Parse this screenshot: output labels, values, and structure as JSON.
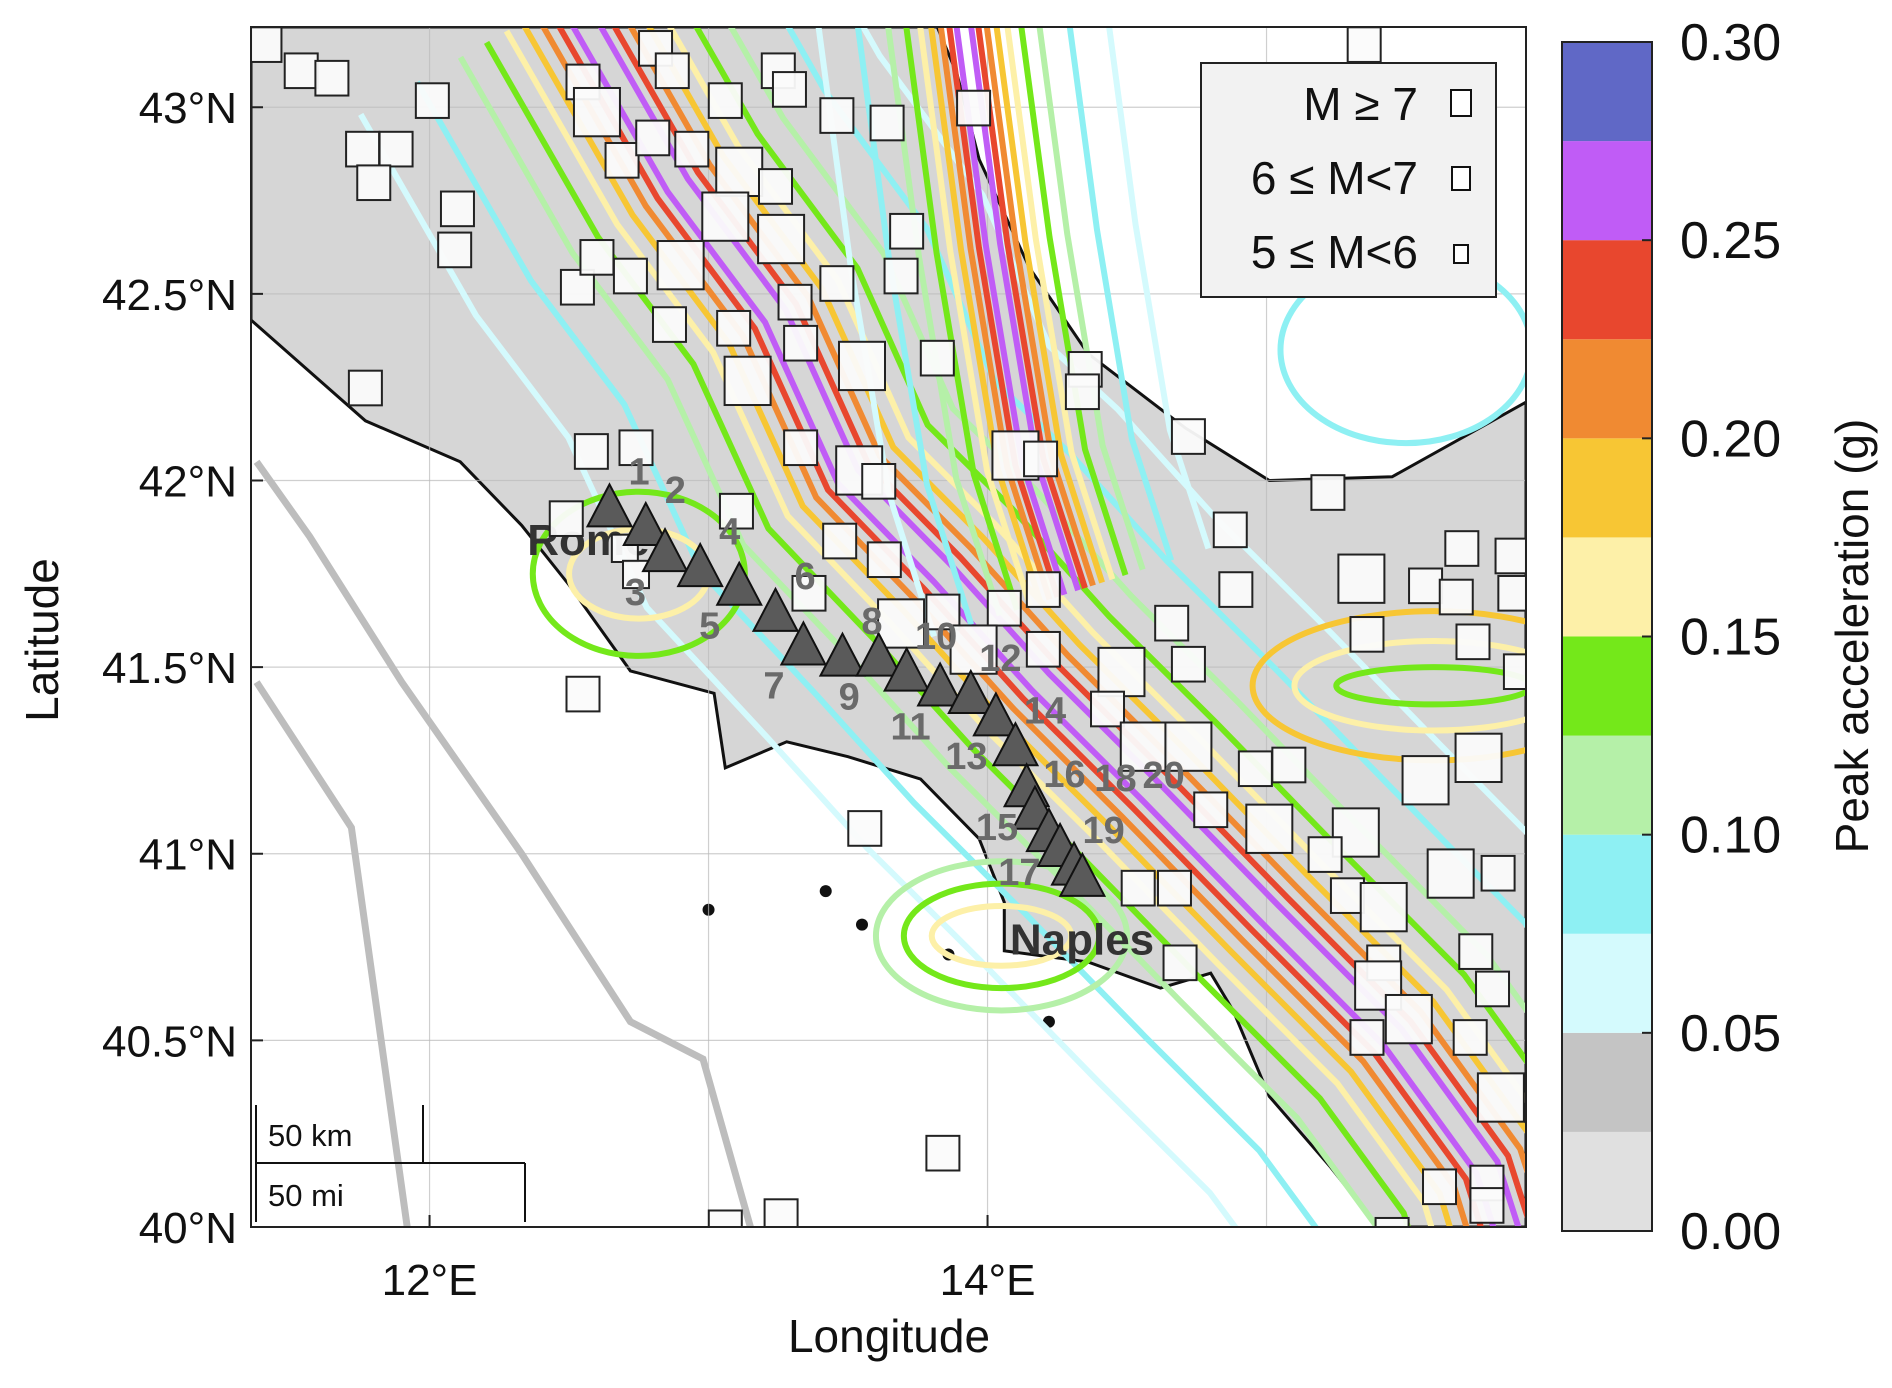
{
  "map": {
    "xlabel": "Longitude",
    "ylabel": "Latitude",
    "lon_range": [
      11.36,
      15.93
    ],
    "lat_range": [
      40.0,
      43.215
    ],
    "grid": true,
    "lon_gridlines": [
      12,
      13,
      14,
      15
    ],
    "lat_gridlines": [
      40,
      40.5,
      41,
      41.5,
      42,
      42.5,
      43
    ],
    "x_ticks": [
      {
        "value": 12,
        "label": "12°E"
      },
      {
        "value": 14,
        "label": "14°E"
      }
    ],
    "y_ticks": [
      {
        "value": 40,
        "label": "40°N"
      },
      {
        "value": 40.5,
        "label": "40.5°N"
      },
      {
        "value": 41,
        "label": "41°N"
      },
      {
        "value": 41.5,
        "label": "41.5°N"
      },
      {
        "value": 42,
        "label": "42°N"
      },
      {
        "value": 42.5,
        "label": "42.5°N"
      },
      {
        "value": 43,
        "label": "43°N"
      }
    ],
    "land_color": "#d6d6d6",
    "land": [
      [
        11.36,
        42.43
      ],
      [
        11.77,
        42.16
      ],
      [
        12.11,
        42.05
      ],
      [
        12.33,
        41.88
      ],
      [
        12.5,
        41.72
      ],
      [
        12.72,
        41.49
      ],
      [
        13.02,
        41.43
      ],
      [
        13.06,
        41.23
      ],
      [
        13.28,
        41.3
      ],
      [
        13.5,
        41.26
      ],
      [
        13.76,
        41.2
      ],
      [
        13.97,
        41.04
      ],
      [
        14.06,
        40.87
      ],
      [
        14.06,
        40.74
      ],
      [
        14.36,
        40.71
      ],
      [
        14.62,
        40.64
      ],
      [
        14.8,
        40.68
      ],
      [
        14.88,
        40.58
      ],
      [
        15.01,
        40.35
      ],
      [
        15.23,
        40.16
      ],
      [
        15.4,
        40.0
      ],
      [
        15.93,
        40.0
      ],
      [
        15.93,
        42.21
      ],
      [
        15.45,
        42.01
      ],
      [
        15.01,
        42.0
      ],
      [
        14.71,
        42.14
      ],
      [
        14.36,
        42.34
      ],
      [
        14.15,
        42.57
      ],
      [
        13.97,
        42.86
      ],
      [
        13.89,
        43.09
      ],
      [
        13.82,
        43.215
      ],
      [
        11.36,
        43.215
      ]
    ],
    "islands": [
      [
        13.0,
        40.85
      ],
      [
        13.42,
        40.9
      ],
      [
        13.55,
        40.81
      ],
      [
        13.86,
        40.73
      ],
      [
        14.22,
        40.55
      ]
    ],
    "offshore_lines": [
      [
        [
          11.38,
          42.05
        ],
        [
          11.57,
          41.85
        ],
        [
          11.9,
          41.46
        ],
        [
          12.33,
          41.0
        ],
        [
          12.72,
          40.55
        ],
        [
          12.98,
          40.45
        ],
        [
          13.15,
          40.0
        ]
      ],
      [
        [
          11.38,
          41.46
        ],
        [
          11.72,
          41.07
        ],
        [
          11.92,
          40.0
        ]
      ]
    ],
    "scale_bar": {
      "km_label": "50 km",
      "mi_label": "50 mi"
    },
    "cities": [
      {
        "name": "Rome",
        "lon": 12.35,
        "lat": 41.8
      },
      {
        "name": "Naples",
        "lon": 14.08,
        "lat": 40.73
      }
    ]
  },
  "contours": {
    "ridges": [
      [
        [
          12.5,
          43.3
        ],
        [
          12.89,
          42.79
        ],
        [
          13.24,
          42.44
        ],
        [
          13.5,
          42.01
        ],
        [
          13.84,
          41.75
        ],
        [
          14.19,
          41.46
        ],
        [
          14.58,
          41.17
        ],
        [
          15.01,
          40.84
        ],
        [
          15.45,
          40.51
        ],
        [
          15.79,
          40.16
        ],
        [
          15.9,
          39.9
        ]
      ],
      [
        [
          13.9,
          43.3
        ],
        [
          14.02,
          42.63
        ],
        [
          14.15,
          42.05
        ],
        [
          14.3,
          41.7
        ]
      ]
    ],
    "levels": [
      {
        "value": 0.25,
        "color": "#c05cf6"
      },
      {
        "value": 0.225,
        "color": "#e8472e"
      },
      {
        "value": 0.2,
        "color": "#f08a32"
      },
      {
        "value": 0.175,
        "color": "#f7c634"
      },
      {
        "value": 0.15,
        "color": "#fdf0a8"
      },
      {
        "value": 0.125,
        "color": "#74e81a"
      },
      {
        "value": 0.1,
        "color": "#b5f0a8"
      },
      {
        "value": 0.075,
        "color": "#8ef0f3"
      },
      {
        "value": 0.05,
        "color": "#d4fafd"
      }
    ],
    "loops": [
      {
        "lon": 14.05,
        "lat": 40.78,
        "rlon": 0.25,
        "rlat": 0.08,
        "level": 0.15
      },
      {
        "lon": 14.05,
        "lat": 40.78,
        "rlon": 0.35,
        "rlat": 0.14,
        "level": 0.125
      },
      {
        "lon": 14.05,
        "lat": 40.78,
        "rlon": 0.45,
        "rlat": 0.2,
        "level": 0.1
      },
      {
        "lon": 15.6,
        "lat": 41.45,
        "rlon": 0.35,
        "rlat": 0.05,
        "level": 0.125
      },
      {
        "lon": 15.6,
        "lat": 41.45,
        "rlon": 0.5,
        "rlat": 0.12,
        "level": 0.15
      },
      {
        "lon": 15.6,
        "lat": 41.45,
        "rlon": 0.65,
        "rlat": 0.2,
        "level": 0.175
      },
      {
        "lon": 12.75,
        "lat": 41.75,
        "rlon": 0.25,
        "rlat": 0.12,
        "level": 0.15
      },
      {
        "lon": 12.75,
        "lat": 41.75,
        "rlon": 0.38,
        "rlat": 0.22,
        "level": 0.125
      },
      {
        "lon": 15.5,
        "lat": 42.35,
        "rlon": 0.45,
        "rlat": 0.25,
        "level": 0.075
      }
    ]
  },
  "stations": [
    {
      "id": "1",
      "lon": 12.645,
      "lat": 41.92
    },
    {
      "id": "2",
      "lon": 12.775,
      "lat": 41.87
    },
    {
      "id": "3",
      "lon": 12.844,
      "lat": 41.8
    },
    {
      "id": "4",
      "lon": 12.97,
      "lat": 41.76
    },
    {
      "id": "5",
      "lon": 13.11,
      "lat": 41.71
    },
    {
      "id": "6",
      "lon": 13.24,
      "lat": 41.64
    },
    {
      "id": "7",
      "lon": 13.34,
      "lat": 41.55
    },
    {
      "id": "8",
      "lon": 13.48,
      "lat": 41.52
    },
    {
      "id": "9",
      "lon": 13.61,
      "lat": 41.52
    },
    {
      "id": "10",
      "lon": 13.71,
      "lat": 41.48
    },
    {
      "id": "11",
      "lon": 13.83,
      "lat": 41.44
    },
    {
      "id": "12",
      "lon": 13.94,
      "lat": 41.42
    },
    {
      "id": "13",
      "lon": 14.03,
      "lat": 41.36
    },
    {
      "id": "14",
      "lon": 14.1,
      "lat": 41.28
    },
    {
      "id": "15",
      "lon": 14.14,
      "lat": 41.17
    },
    {
      "id": "16",
      "lon": 14.17,
      "lat": 41.11
    },
    {
      "id": "17",
      "lon": 14.22,
      "lat": 41.05
    },
    {
      "id": "18",
      "lon": 14.26,
      "lat": 41.01
    },
    {
      "id": "19",
      "lon": 14.31,
      "lat": 40.96
    },
    {
      "id": "20",
      "lon": 14.34,
      "lat": 40.93
    }
  ],
  "earthquakes": [
    {
      "lon": 11.41,
      "lat": 43.17,
      "m": "6-7"
    },
    {
      "lon": 11.54,
      "lat": 43.1,
      "m": "6-7"
    },
    {
      "lon": 11.65,
      "lat": 43.08,
      "m": "6-7"
    },
    {
      "lon": 12.01,
      "lat": 43.02,
      "m": "6-7"
    },
    {
      "lon": 11.76,
      "lat": 42.89,
      "m": "6-7"
    },
    {
      "lon": 11.88,
      "lat": 42.89,
      "m": "6-7"
    },
    {
      "lon": 11.8,
      "lat": 42.8,
      "m": "6-7"
    },
    {
      "lon": 12.1,
      "lat": 42.73,
      "m": "6-7"
    },
    {
      "lon": 12.09,
      "lat": 42.62,
      "m": "6-7"
    },
    {
      "lon": 12.53,
      "lat": 42.52,
      "m": "6-7"
    },
    {
      "lon": 12.6,
      "lat": 42.6,
      "m": "6-7"
    },
    {
      "lon": 12.55,
      "lat": 43.07,
      "m": "6-7"
    },
    {
      "lon": 12.6,
      "lat": 42.99,
      "m": ">=7"
    },
    {
      "lon": 12.81,
      "lat": 43.16,
      "m": "6-7"
    },
    {
      "lon": 12.87,
      "lat": 43.1,
      "m": "6-7"
    },
    {
      "lon": 13.06,
      "lat": 43.02,
      "m": "6-7"
    },
    {
      "lon": 13.25,
      "lat": 43.1,
      "m": "6-7"
    },
    {
      "lon": 13.29,
      "lat": 43.05,
      "m": "6-7"
    },
    {
      "lon": 12.69,
      "lat": 42.86,
      "m": "6-7"
    },
    {
      "lon": 12.8,
      "lat": 42.92,
      "m": "6-7"
    },
    {
      "lon": 12.94,
      "lat": 42.89,
      "m": "6-7"
    },
    {
      "lon": 13.11,
      "lat": 42.83,
      "m": ">=7"
    },
    {
      "lon": 13.24,
      "lat": 42.79,
      "m": "6-7"
    },
    {
      "lon": 13.06,
      "lat": 42.71,
      "m": ">=7"
    },
    {
      "lon": 13.26,
      "lat": 42.65,
      "m": ">=7"
    },
    {
      "lon": 12.9,
      "lat": 42.58,
      "m": ">=7"
    },
    {
      "lon": 12.72,
      "lat": 42.55,
      "m": "6-7"
    },
    {
      "lon": 12.86,
      "lat": 42.42,
      "m": "6-7"
    },
    {
      "lon": 13.09,
      "lat": 42.41,
      "m": "6-7"
    },
    {
      "lon": 13.14,
      "lat": 42.27,
      "m": ">=7"
    },
    {
      "lon": 13.31,
      "lat": 42.48,
      "m": "6-7"
    },
    {
      "lon": 13.33,
      "lat": 42.37,
      "m": "6-7"
    },
    {
      "lon": 13.46,
      "lat": 42.53,
      "m": "6-7"
    },
    {
      "lon": 13.55,
      "lat": 42.31,
      "m": ">=7"
    },
    {
      "lon": 13.71,
      "lat": 42.67,
      "m": "6-7"
    },
    {
      "lon": 13.64,
      "lat": 42.96,
      "m": "6-7"
    },
    {
      "lon": 13.46,
      "lat": 42.98,
      "m": "6-7"
    },
    {
      "lon": 13.69,
      "lat": 42.55,
      "m": "6-7"
    },
    {
      "lon": 13.82,
      "lat": 42.33,
      "m": "6-7"
    },
    {
      "lon": 13.95,
      "lat": 43.0,
      "m": "6-7"
    },
    {
      "lon": 13.33,
      "lat": 42.09,
      "m": "6-7"
    },
    {
      "lon": 13.54,
      "lat": 42.03,
      "m": ">=7"
    },
    {
      "lon": 13.61,
      "lat": 42.0,
      "m": "6-7"
    },
    {
      "lon": 13.1,
      "lat": 41.92,
      "m": "6-7"
    },
    {
      "lon": 12.74,
      "lat": 42.09,
      "m": "6-7"
    },
    {
      "lon": 12.58,
      "lat": 42.08,
      "m": "6-7"
    },
    {
      "lon": 11.77,
      "lat": 42.25,
      "m": "6-7"
    },
    {
      "lon": 12.49,
      "lat": 41.9,
      "m": "6-7"
    },
    {
      "lon": 12.7,
      "lat": 41.82,
      "m": "5-6"
    },
    {
      "lon": 12.74,
      "lat": 41.75,
      "m": "5-6"
    },
    {
      "lon": 13.47,
      "lat": 41.84,
      "m": "6-7"
    },
    {
      "lon": 13.36,
      "lat": 41.7,
      "m": "6-7"
    },
    {
      "lon": 13.63,
      "lat": 41.79,
      "m": "6-7"
    },
    {
      "lon": 13.69,
      "lat": 41.62,
      "m": ">=7"
    },
    {
      "lon": 13.84,
      "lat": 41.65,
      "m": "6-7"
    },
    {
      "lon": 14.06,
      "lat": 41.66,
      "m": "6-7"
    },
    {
      "lon": 14.2,
      "lat": 41.71,
      "m": "6-7"
    },
    {
      "lon": 13.95,
      "lat": 41.55,
      "m": ">=7"
    },
    {
      "lon": 14.2,
      "lat": 41.55,
      "m": "6-7"
    },
    {
      "lon": 14.1,
      "lat": 42.07,
      "m": ">=7"
    },
    {
      "lon": 14.19,
      "lat": 42.06,
      "m": "6-7"
    },
    {
      "lon": 14.35,
      "lat": 42.3,
      "m": "6-7"
    },
    {
      "lon": 14.34,
      "lat": 42.24,
      "m": "6-7"
    },
    {
      "lon": 14.72,
      "lat": 42.12,
      "m": "6-7"
    },
    {
      "lon": 15.22,
      "lat": 41.97,
      "m": "6-7"
    },
    {
      "lon": 14.87,
      "lat": 41.87,
      "m": "6-7"
    },
    {
      "lon": 14.89,
      "lat": 41.71,
      "m": "6-7"
    },
    {
      "lon": 14.48,
      "lat": 41.49,
      "m": ">=7"
    },
    {
      "lon": 14.72,
      "lat": 41.51,
      "m": "6-7"
    },
    {
      "lon": 14.43,
      "lat": 41.39,
      "m": "6-7"
    },
    {
      "lon": 14.56,
      "lat": 41.29,
      "m": ">=7"
    },
    {
      "lon": 14.72,
      "lat": 41.29,
      "m": ">=7"
    },
    {
      "lon": 14.96,
      "lat": 41.23,
      "m": "6-7"
    },
    {
      "lon": 15.08,
      "lat": 41.24,
      "m": "6-7"
    },
    {
      "lon": 15.01,
      "lat": 41.07,
      "m": ">=7"
    },
    {
      "lon": 14.8,
      "lat": 41.12,
      "m": "6-7"
    },
    {
      "lon": 15.32,
      "lat": 41.06,
      "m": ">=7"
    },
    {
      "lon": 15.21,
      "lat": 41.0,
      "m": "6-7"
    },
    {
      "lon": 15.29,
      "lat": 40.89,
      "m": "6-7"
    },
    {
      "lon": 15.42,
      "lat": 40.86,
      "m": ">=7"
    },
    {
      "lon": 15.42,
      "lat": 40.71,
      "m": "6-7"
    },
    {
      "lon": 15.4,
      "lat": 40.65,
      "m": ">=7"
    },
    {
      "lon": 15.51,
      "lat": 40.56,
      "m": ">=7"
    },
    {
      "lon": 15.36,
      "lat": 40.51,
      "m": "6-7"
    },
    {
      "lon": 15.73,
      "lat": 40.51,
      "m": "6-7"
    },
    {
      "lon": 15.84,
      "lat": 40.35,
      "m": ">=7"
    },
    {
      "lon": 15.57,
      "lat": 41.2,
      "m": ">=7"
    },
    {
      "lon": 15.76,
      "lat": 41.26,
      "m": ">=7"
    },
    {
      "lon": 15.66,
      "lat": 40.95,
      "m": ">=7"
    },
    {
      "lon": 15.83,
      "lat": 40.95,
      "m": "6-7"
    },
    {
      "lon": 15.75,
      "lat": 40.74,
      "m": "6-7"
    },
    {
      "lon": 15.81,
      "lat": 40.64,
      "m": "6-7"
    },
    {
      "lon": 15.62,
      "lat": 40.11,
      "m": "6-7"
    },
    {
      "lon": 15.79,
      "lat": 40.12,
      "m": "6-7"
    },
    {
      "lon": 15.79,
      "lat": 40.06,
      "m": "6-7"
    },
    {
      "lon": 15.45,
      "lat": 39.98,
      "m": "6-7"
    },
    {
      "lon": 15.34,
      "lat": 41.74,
      "m": ">=7"
    },
    {
      "lon": 15.57,
      "lat": 41.72,
      "m": "6-7"
    },
    {
      "lon": 15.68,
      "lat": 41.69,
      "m": "6-7"
    },
    {
      "lon": 15.88,
      "lat": 41.8,
      "m": "6-7"
    },
    {
      "lon": 15.7,
      "lat": 41.82,
      "m": "6-7"
    },
    {
      "lon": 15.89,
      "lat": 41.7,
      "m": "6-7"
    },
    {
      "lon": 15.91,
      "lat": 41.49,
      "m": "6-7"
    },
    {
      "lon": 15.36,
      "lat": 41.59,
      "m": "6-7"
    },
    {
      "lon": 15.74,
      "lat": 41.57,
      "m": "6-7"
    },
    {
      "lon": 14.66,
      "lat": 41.62,
      "m": "6-7"
    },
    {
      "lon": 13.56,
      "lat": 41.07,
      "m": "6-7"
    },
    {
      "lon": 13.84,
      "lat": 40.2,
      "m": "6-7"
    },
    {
      "lon": 13.06,
      "lat": 40.0,
      "m": "6-7"
    },
    {
      "lon": 13.26,
      "lat": 40.03,
      "m": "6-7"
    },
    {
      "lon": 12.55,
      "lat": 41.43,
      "m": "6-7"
    },
    {
      "lon": 15.35,
      "lat": 43.17,
      "m": "6-7"
    },
    {
      "lon": 14.69,
      "lat": 40.71,
      "m": "6-7"
    },
    {
      "lon": 14.54,
      "lat": 40.91,
      "m": "6-7"
    },
    {
      "lon": 14.67,
      "lat": 40.91,
      "m": "6-7"
    }
  ],
  "legend": {
    "items": [
      {
        "label": "M ≥ 7",
        "class": ">=7"
      },
      {
        "label": "6 ≤ M<7",
        "class": "6-7"
      },
      {
        "label": "5 ≤ M<6",
        "class": "5-6"
      }
    ]
  },
  "colorbar": {
    "label": "Peak acceleration (g)",
    "range": [
      0,
      0.3
    ],
    "ticks": [
      {
        "value": 0,
        "label": "0.00"
      },
      {
        "value": 0.05,
        "label": "0.05"
      },
      {
        "value": 0.1,
        "label": "0.10"
      },
      {
        "value": 0.15,
        "label": "0.15"
      },
      {
        "value": 0.2,
        "label": "0.20"
      },
      {
        "value": 0.25,
        "label": "0.25"
      },
      {
        "value": 0.3,
        "label": "0.30"
      }
    ],
    "bands": [
      {
        "from": 0,
        "to": 0.025,
        "color": "#e0e0e0"
      },
      {
        "from": 0.025,
        "to": 0.05,
        "color": "#c4c4c4"
      },
      {
        "from": 0.05,
        "to": 0.075,
        "color": "#d4fafd"
      },
      {
        "from": 0.075,
        "to": 0.1,
        "color": "#8ef0f3"
      },
      {
        "from": 0.1,
        "to": 0.125,
        "color": "#b5f0a8"
      },
      {
        "from": 0.125,
        "to": 0.15,
        "color": "#74e81a"
      },
      {
        "from": 0.15,
        "to": 0.175,
        "color": "#fdf0a8"
      },
      {
        "from": 0.175,
        "to": 0.2,
        "color": "#f7c634"
      },
      {
        "from": 0.2,
        "to": 0.225,
        "color": "#f08a32"
      },
      {
        "from": 0.225,
        "to": 0.25,
        "color": "#e8472e"
      },
      {
        "from": 0.25,
        "to": 0.275,
        "color": "#c05cf6"
      },
      {
        "from": 0.275,
        "to": 0.3,
        "color": "#6068c6"
      }
    ]
  }
}
